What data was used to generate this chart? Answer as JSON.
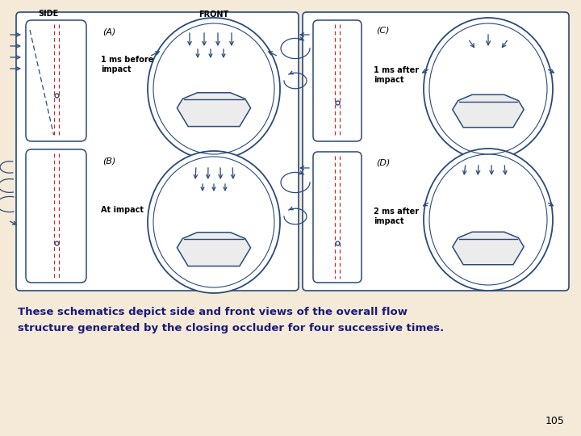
{
  "bg_color": "#f5ead8",
  "line_color": "#2a4a7a",
  "arrow_color": "#2a4a7a",
  "dashed_color": "#cc2222",
  "text_color": "#1a1a7a",
  "caption_line1": "These schematics depict side and front views of the overall flow",
  "caption_line2": "structure generated by the closing occluder for four successive times.",
  "page_num": "105",
  "label_A": "(A)",
  "label_B": "(B)",
  "label_C": "(C)",
  "label_D": "(D)",
  "label_SIDE": "SIDE",
  "label_FRONT": "FRONT",
  "text_A": "1 ms before\nimpact",
  "text_B": "At impact",
  "text_C": "1 ms after\nimpact",
  "text_D": "2 ms after\nimpact"
}
